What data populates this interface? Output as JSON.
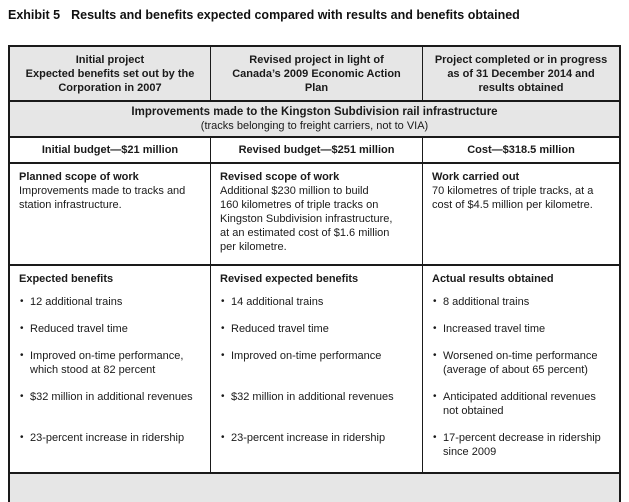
{
  "exhibit": {
    "label": "Exhibit 5",
    "title": "Results and benefits expected compared with results and benefits obtained"
  },
  "ui": {
    "bullet_glyph": "•"
  },
  "colors": {
    "header_bg": "#e6e6e6",
    "border": "#1a1a1a",
    "text": "#1a1a1a",
    "page_bg": "#ffffff"
  },
  "table": {
    "header_columns": [
      "Initial project\nExpected benefits set out by the\nCorporation in 2007",
      "Revised project in light of\nCanada’s 2009 Economic Action\nPlan",
      "Project completed or in progress\nas of 31 December 2014 and\nresults obtained"
    ],
    "spanning_row": {
      "heading": "Improvements made to the Kingston Subdivision rail infrastructure",
      "subtext": "(tracks belonging to freight carriers, not to VIA)"
    },
    "budget_row": [
      "Initial budget—$21 million",
      "Revised budget—$251 million",
      "Cost—$318.5 million"
    ],
    "scope_row": [
      {
        "heading": "Planned scope of work",
        "body": "Improvements made to tracks and\nstation infrastructure."
      },
      {
        "heading": "Revised scope of work",
        "body": "Additional $230 million to build\n160 kilometres of triple tracks on\nKingston Subdivision infrastructure,\nat an estimated cost of $1.6 million\nper kilometre."
      },
      {
        "heading": "Work carried out",
        "body": "70 kilometres of triple tracks, at a\ncost of $4.5 million per kilometre."
      }
    ],
    "benefits_row": {
      "headings": [
        "Expected benefits",
        "Revised expected benefits",
        "Actual results obtained"
      ],
      "items": [
        [
          "12 additional trains",
          "14 additional trains",
          "8 additional trains"
        ],
        [
          "Reduced travel time",
          "Reduced travel time",
          "Increased travel time"
        ],
        [
          "Improved on-time performance,\nwhich stood at 82 percent",
          "Improved on-time performance",
          "Worsened on-time performance\n(average of about 65 percent)"
        ],
        [
          "$32 million in additional revenues",
          "$32 million in additional revenues",
          "Anticipated additional revenues\nnot obtained"
        ],
        [
          "23-percent increase in ridership",
          "23-percent increase in ridership",
          "17-percent decrease in ridership\nsince 2009"
        ]
      ]
    }
  }
}
